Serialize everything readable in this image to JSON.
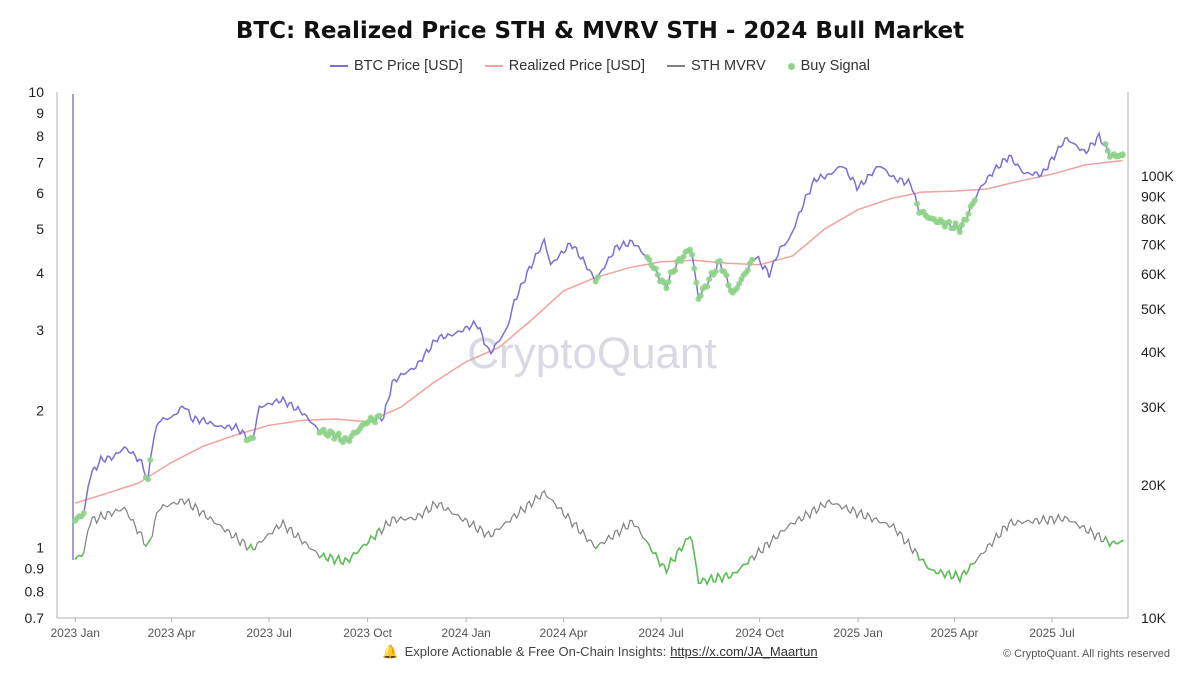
{
  "chart_data": {
    "type": "line",
    "title": "BTC: Realized Price STH & MVRV STH - 2024 Bull Market",
    "legend_position": "top-center",
    "watermark": "CryptoQuant",
    "colors": {
      "btc_price": "#7b6fd6",
      "realized_price": "#f0a39c",
      "sth_mvrv": "#808080",
      "buy_signal": "#8fd48a",
      "buy_signal_line": "#5cbf56"
    },
    "x_axis": {
      "type": "date",
      "range": [
        "2022-12-15",
        "2025-09-10"
      ],
      "ticks": [
        {
          "date": "2023-01-01",
          "label": "2023 Jan"
        },
        {
          "date": "2023-04-01",
          "label": "2023 Apr"
        },
        {
          "date": "2023-07-01",
          "label": "2023 Jul"
        },
        {
          "date": "2023-10-01",
          "label": "2023 Oct"
        },
        {
          "date": "2024-01-01",
          "label": "2024 Jan"
        },
        {
          "date": "2024-04-01",
          "label": "2024 Apr"
        },
        {
          "date": "2024-07-01",
          "label": "2024 Jul"
        },
        {
          "date": "2024-10-01",
          "label": "2024 Oct"
        },
        {
          "date": "2025-01-01",
          "label": "2025 Jan"
        },
        {
          "date": "2025-04-01",
          "label": "2025 Apr"
        },
        {
          "date": "2025-07-01",
          "label": "2025 Jul"
        }
      ]
    },
    "y_left": {
      "scale": "log",
      "range": [
        0.7,
        10
      ],
      "ticks": [
        {
          "value": 10,
          "label": "10"
        },
        {
          "value": 9,
          "label": "9"
        },
        {
          "value": 8,
          "label": "8"
        },
        {
          "value": 7,
          "label": "7"
        },
        {
          "value": 6,
          "label": "6"
        },
        {
          "value": 5,
          "label": "5"
        },
        {
          "value": 4,
          "label": "4"
        },
        {
          "value": 3,
          "label": "3"
        },
        {
          "value": 2,
          "label": "2"
        },
        {
          "value": 1,
          "label": "1"
        },
        {
          "value": 0.9,
          "label": "0.9"
        },
        {
          "value": 0.8,
          "label": "0.8"
        },
        {
          "value": 0.7,
          "label": "0.7"
        }
      ]
    },
    "y_right": {
      "scale": "log",
      "range": [
        10000,
        155000
      ],
      "ticks": [
        {
          "value": 100000,
          "label": "100K"
        },
        {
          "value": 90000,
          "label": "90K"
        },
        {
          "value": 80000,
          "label": "80K"
        },
        {
          "value": 70000,
          "label": "70K"
        },
        {
          "value": 60000,
          "label": "60K"
        },
        {
          "value": 50000,
          "label": "50K"
        },
        {
          "value": 40000,
          "label": "40K"
        },
        {
          "value": 30000,
          "label": "30K"
        },
        {
          "value": 20000,
          "label": "20K"
        },
        {
          "value": 10000,
          "label": "10K"
        }
      ]
    },
    "series": [
      {
        "name": "BTC Price [USD]",
        "axis": "right",
        "points": [
          [
            "2023-01-01",
            16600
          ],
          [
            "2023-01-10",
            17400
          ],
          [
            "2023-01-14",
            20800
          ],
          [
            "2023-01-25",
            22800
          ],
          [
            "2023-02-05",
            23100
          ],
          [
            "2023-02-16",
            24300
          ],
          [
            "2023-02-25",
            23400
          ],
          [
            "2023-03-05",
            22300
          ],
          [
            "2023-03-10",
            20200
          ],
          [
            "2023-03-13",
            24200
          ],
          [
            "2023-03-20",
            28000
          ],
          [
            "2023-04-01",
            28400
          ],
          [
            "2023-04-13",
            30300
          ],
          [
            "2023-04-20",
            28200
          ],
          [
            "2023-05-01",
            28000
          ],
          [
            "2023-05-15",
            27100
          ],
          [
            "2023-06-01",
            27000
          ],
          [
            "2023-06-15",
            25000
          ],
          [
            "2023-06-22",
            30000
          ],
          [
            "2023-07-01",
            30500
          ],
          [
            "2023-07-13",
            31200
          ],
          [
            "2023-08-01",
            29200
          ],
          [
            "2023-08-17",
            26500
          ],
          [
            "2023-09-01",
            25900
          ],
          [
            "2023-09-11",
            25100
          ],
          [
            "2023-10-01",
            27900
          ],
          [
            "2023-10-16",
            28500
          ],
          [
            "2023-10-24",
            34000
          ],
          [
            "2023-11-01",
            35400
          ],
          [
            "2023-11-15",
            37000
          ],
          [
            "2023-12-05",
            43000
          ],
          [
            "2023-12-20",
            43800
          ],
          [
            "2024-01-11",
            46500
          ],
          [
            "2024-01-23",
            39600
          ],
          [
            "2024-02-08",
            45000
          ],
          [
            "2024-02-15",
            52000
          ],
          [
            "2024-02-28",
            61000
          ],
          [
            "2024-03-14",
            71500
          ],
          [
            "2024-03-20",
            63000
          ],
          [
            "2024-04-08",
            70500
          ],
          [
            "2024-04-20",
            64000
          ],
          [
            "2024-05-01",
            58000
          ],
          [
            "2024-05-20",
            69000
          ],
          [
            "2024-06-05",
            71000
          ],
          [
            "2024-06-20",
            64500
          ],
          [
            "2024-07-05",
            56000
          ],
          [
            "2024-07-15",
            63000
          ],
          [
            "2024-07-29",
            69000
          ],
          [
            "2024-08-05",
            53000
          ],
          [
            "2024-08-25",
            64000
          ],
          [
            "2024-09-06",
            54000
          ],
          [
            "2024-09-27",
            66000
          ],
          [
            "2024-10-10",
            60000
          ],
          [
            "2024-10-20",
            68500
          ],
          [
            "2024-10-29",
            72000
          ],
          [
            "2024-11-12",
            88000
          ],
          [
            "2024-11-22",
            98500
          ],
          [
            "2024-12-05",
            100500
          ],
          [
            "2024-12-17",
            106000
          ],
          [
            "2025-01-01",
            94000
          ],
          [
            "2025-01-21",
            106000
          ],
          [
            "2025-02-03",
            99000
          ],
          [
            "2025-02-20",
            96000
          ],
          [
            "2025-02-26",
            84000
          ],
          [
            "2025-03-10",
            80000
          ],
          [
            "2025-04-07",
            76000
          ],
          [
            "2025-04-25",
            94000
          ],
          [
            "2025-05-08",
            103000
          ],
          [
            "2025-05-22",
            111000
          ],
          [
            "2025-06-05",
            101500
          ],
          [
            "2025-06-22",
            101000
          ],
          [
            "2025-07-14",
            122000
          ],
          [
            "2025-08-01",
            113000
          ],
          [
            "2025-08-14",
            123000
          ],
          [
            "2025-08-25",
            111000
          ],
          [
            "2025-09-05",
            111500
          ]
        ]
      },
      {
        "name": "Realized Price [USD]",
        "axis": "right",
        "points": [
          [
            "2023-01-01",
            18200
          ],
          [
            "2023-02-01",
            19200
          ],
          [
            "2023-03-01",
            20200
          ],
          [
            "2023-04-01",
            22500
          ],
          [
            "2023-05-01",
            24500
          ],
          [
            "2023-06-01",
            26000
          ],
          [
            "2023-07-01",
            27300
          ],
          [
            "2023-08-01",
            28000
          ],
          [
            "2023-09-01",
            28200
          ],
          [
            "2023-10-01",
            27800
          ],
          [
            "2023-11-01",
            30000
          ],
          [
            "2023-12-01",
            34000
          ],
          [
            "2024-01-01",
            38000
          ],
          [
            "2024-02-01",
            41000
          ],
          [
            "2024-03-01",
            47000
          ],
          [
            "2024-04-01",
            55000
          ],
          [
            "2024-05-01",
            59000
          ],
          [
            "2024-06-01",
            62000
          ],
          [
            "2024-07-01",
            64000
          ],
          [
            "2024-08-01",
            64500
          ],
          [
            "2024-09-01",
            63500
          ],
          [
            "2024-10-01",
            63000
          ],
          [
            "2024-11-01",
            66000
          ],
          [
            "2024-12-01",
            76000
          ],
          [
            "2025-01-01",
            84000
          ],
          [
            "2025-02-01",
            89000
          ],
          [
            "2025-03-01",
            92000
          ],
          [
            "2025-04-01",
            92500
          ],
          [
            "2025-05-01",
            93500
          ],
          [
            "2025-06-01",
            97500
          ],
          [
            "2025-07-01",
            101000
          ],
          [
            "2025-08-01",
            106000
          ],
          [
            "2025-09-05",
            108500
          ]
        ]
      },
      {
        "name": "STH MVRV",
        "axis": "left",
        "points": [
          [
            "2023-01-01",
            0.94
          ],
          [
            "2023-01-10",
            0.98
          ],
          [
            "2023-01-14",
            1.14
          ],
          [
            "2023-02-16",
            1.22
          ],
          [
            "2023-03-10",
            1.0
          ],
          [
            "2023-03-20",
            1.22
          ],
          [
            "2023-04-13",
            1.27
          ],
          [
            "2023-05-15",
            1.12
          ],
          [
            "2023-06-15",
            0.99
          ],
          [
            "2023-07-13",
            1.13
          ],
          [
            "2023-08-17",
            0.96
          ],
          [
            "2023-09-11",
            0.93
          ],
          [
            "2023-10-24",
            1.15
          ],
          [
            "2023-11-15",
            1.16
          ],
          [
            "2023-12-05",
            1.25
          ],
          [
            "2024-01-23",
            1.06
          ],
          [
            "2024-03-14",
            1.32
          ],
          [
            "2024-05-01",
            1.0
          ],
          [
            "2024-06-05",
            1.14
          ],
          [
            "2024-07-05",
            0.89
          ],
          [
            "2024-07-29",
            1.07
          ],
          [
            "2024-08-05",
            0.84
          ],
          [
            "2024-09-06",
            0.87
          ],
          [
            "2024-10-29",
            1.12
          ],
          [
            "2024-12-05",
            1.26
          ],
          [
            "2025-02-03",
            1.11
          ],
          [
            "2025-03-10",
            0.89
          ],
          [
            "2025-04-07",
            0.86
          ],
          [
            "2025-05-22",
            1.13
          ],
          [
            "2025-07-14",
            1.16
          ],
          [
            "2025-08-25",
            1.02
          ],
          [
            "2025-09-05",
            1.03
          ]
        ]
      },
      {
        "name": "Buy Signal",
        "axis": "right",
        "style": "markers",
        "ranges": [
          [
            "2023-01-01",
            "2023-01-10"
          ],
          [
            "2023-03-08",
            "2023-03-13"
          ],
          [
            "2023-06-10",
            "2023-06-16"
          ],
          [
            "2023-08-17",
            "2023-10-12"
          ],
          [
            "2024-04-30",
            "2024-05-03"
          ],
          [
            "2024-06-18",
            "2024-09-25"
          ],
          [
            "2025-02-24",
            "2025-04-20"
          ],
          [
            "2025-08-20",
            "2025-09-05"
          ]
        ]
      }
    ]
  },
  "footer": {
    "note": "Explore Actionable & Free On-Chain Insights:",
    "link": "https://x.com/JA_Maartun",
    "copyright": "© CryptoQuant. All rights reserved"
  }
}
